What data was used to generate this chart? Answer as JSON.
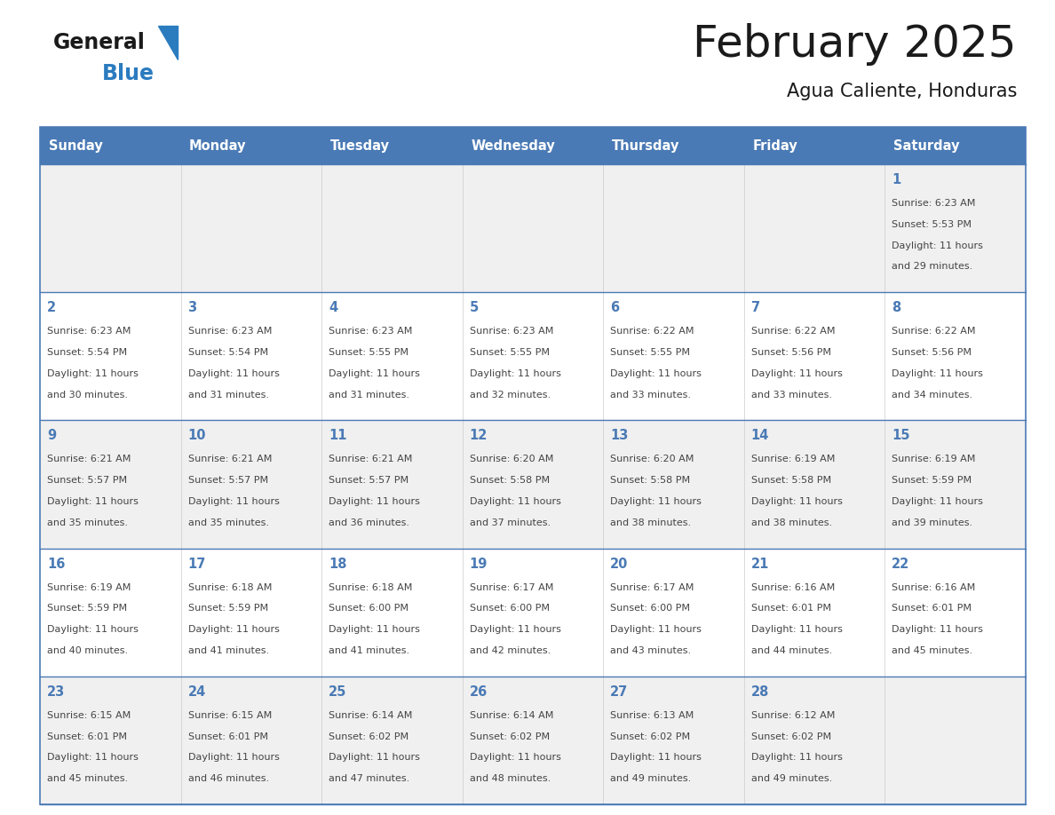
{
  "title": "February 2025",
  "subtitle": "Agua Caliente, Honduras",
  "days_of_week": [
    "Sunday",
    "Monday",
    "Tuesday",
    "Wednesday",
    "Thursday",
    "Friday",
    "Saturday"
  ],
  "header_bg": "#4a7ab5",
  "header_text": "#ffffff",
  "row_bg_even": "#f0f0f0",
  "row_bg_odd": "#ffffff",
  "border_color": "#4a7ab5",
  "separator_color": "#4a7ab5",
  "day_num_color": "#4a7ab5",
  "cell_text_color": "#444444",
  "title_color": "#1a1a1a",
  "logo_general_color": "#1a1a1a",
  "logo_blue_color": "#2b7bbf",
  "calendar_data": [
    [
      null,
      null,
      null,
      null,
      null,
      null,
      {
        "day": "1",
        "sunrise": "6:23 AM",
        "sunset": "5:53 PM",
        "dl1": "Daylight: 11 hours",
        "dl2": "and 29 minutes."
      }
    ],
    [
      {
        "day": "2",
        "sunrise": "6:23 AM",
        "sunset": "5:54 PM",
        "dl1": "Daylight: 11 hours",
        "dl2": "and 30 minutes."
      },
      {
        "day": "3",
        "sunrise": "6:23 AM",
        "sunset": "5:54 PM",
        "dl1": "Daylight: 11 hours",
        "dl2": "and 31 minutes."
      },
      {
        "day": "4",
        "sunrise": "6:23 AM",
        "sunset": "5:55 PM",
        "dl1": "Daylight: 11 hours",
        "dl2": "and 31 minutes."
      },
      {
        "day": "5",
        "sunrise": "6:23 AM",
        "sunset": "5:55 PM",
        "dl1": "Daylight: 11 hours",
        "dl2": "and 32 minutes."
      },
      {
        "day": "6",
        "sunrise": "6:22 AM",
        "sunset": "5:55 PM",
        "dl1": "Daylight: 11 hours",
        "dl2": "and 33 minutes."
      },
      {
        "day": "7",
        "sunrise": "6:22 AM",
        "sunset": "5:56 PM",
        "dl1": "Daylight: 11 hours",
        "dl2": "and 33 minutes."
      },
      {
        "day": "8",
        "sunrise": "6:22 AM",
        "sunset": "5:56 PM",
        "dl1": "Daylight: 11 hours",
        "dl2": "and 34 minutes."
      }
    ],
    [
      {
        "day": "9",
        "sunrise": "6:21 AM",
        "sunset": "5:57 PM",
        "dl1": "Daylight: 11 hours",
        "dl2": "and 35 minutes."
      },
      {
        "day": "10",
        "sunrise": "6:21 AM",
        "sunset": "5:57 PM",
        "dl1": "Daylight: 11 hours",
        "dl2": "and 35 minutes."
      },
      {
        "day": "11",
        "sunrise": "6:21 AM",
        "sunset": "5:57 PM",
        "dl1": "Daylight: 11 hours",
        "dl2": "and 36 minutes."
      },
      {
        "day": "12",
        "sunrise": "6:20 AM",
        "sunset": "5:58 PM",
        "dl1": "Daylight: 11 hours",
        "dl2": "and 37 minutes."
      },
      {
        "day": "13",
        "sunrise": "6:20 AM",
        "sunset": "5:58 PM",
        "dl1": "Daylight: 11 hours",
        "dl2": "and 38 minutes."
      },
      {
        "day": "14",
        "sunrise": "6:19 AM",
        "sunset": "5:58 PM",
        "dl1": "Daylight: 11 hours",
        "dl2": "and 38 minutes."
      },
      {
        "day": "15",
        "sunrise": "6:19 AM",
        "sunset": "5:59 PM",
        "dl1": "Daylight: 11 hours",
        "dl2": "and 39 minutes."
      }
    ],
    [
      {
        "day": "16",
        "sunrise": "6:19 AM",
        "sunset": "5:59 PM",
        "dl1": "Daylight: 11 hours",
        "dl2": "and 40 minutes."
      },
      {
        "day": "17",
        "sunrise": "6:18 AM",
        "sunset": "5:59 PM",
        "dl1": "Daylight: 11 hours",
        "dl2": "and 41 minutes."
      },
      {
        "day": "18",
        "sunrise": "6:18 AM",
        "sunset": "6:00 PM",
        "dl1": "Daylight: 11 hours",
        "dl2": "and 41 minutes."
      },
      {
        "day": "19",
        "sunrise": "6:17 AM",
        "sunset": "6:00 PM",
        "dl1": "Daylight: 11 hours",
        "dl2": "and 42 minutes."
      },
      {
        "day": "20",
        "sunrise": "6:17 AM",
        "sunset": "6:00 PM",
        "dl1": "Daylight: 11 hours",
        "dl2": "and 43 minutes."
      },
      {
        "day": "21",
        "sunrise": "6:16 AM",
        "sunset": "6:01 PM",
        "dl1": "Daylight: 11 hours",
        "dl2": "and 44 minutes."
      },
      {
        "day": "22",
        "sunrise": "6:16 AM",
        "sunset": "6:01 PM",
        "dl1": "Daylight: 11 hours",
        "dl2": "and 45 minutes."
      }
    ],
    [
      {
        "day": "23",
        "sunrise": "6:15 AM",
        "sunset": "6:01 PM",
        "dl1": "Daylight: 11 hours",
        "dl2": "and 45 minutes."
      },
      {
        "day": "24",
        "sunrise": "6:15 AM",
        "sunset": "6:01 PM",
        "dl1": "Daylight: 11 hours",
        "dl2": "and 46 minutes."
      },
      {
        "day": "25",
        "sunrise": "6:14 AM",
        "sunset": "6:02 PM",
        "dl1": "Daylight: 11 hours",
        "dl2": "and 47 minutes."
      },
      {
        "day": "26",
        "sunrise": "6:14 AM",
        "sunset": "6:02 PM",
        "dl1": "Daylight: 11 hours",
        "dl2": "and 48 minutes."
      },
      {
        "day": "27",
        "sunrise": "6:13 AM",
        "sunset": "6:02 PM",
        "dl1": "Daylight: 11 hours",
        "dl2": "and 49 minutes."
      },
      {
        "day": "28",
        "sunrise": "6:12 AM",
        "sunset": "6:02 PM",
        "dl1": "Daylight: 11 hours",
        "dl2": "and 49 minutes."
      },
      null
    ]
  ]
}
